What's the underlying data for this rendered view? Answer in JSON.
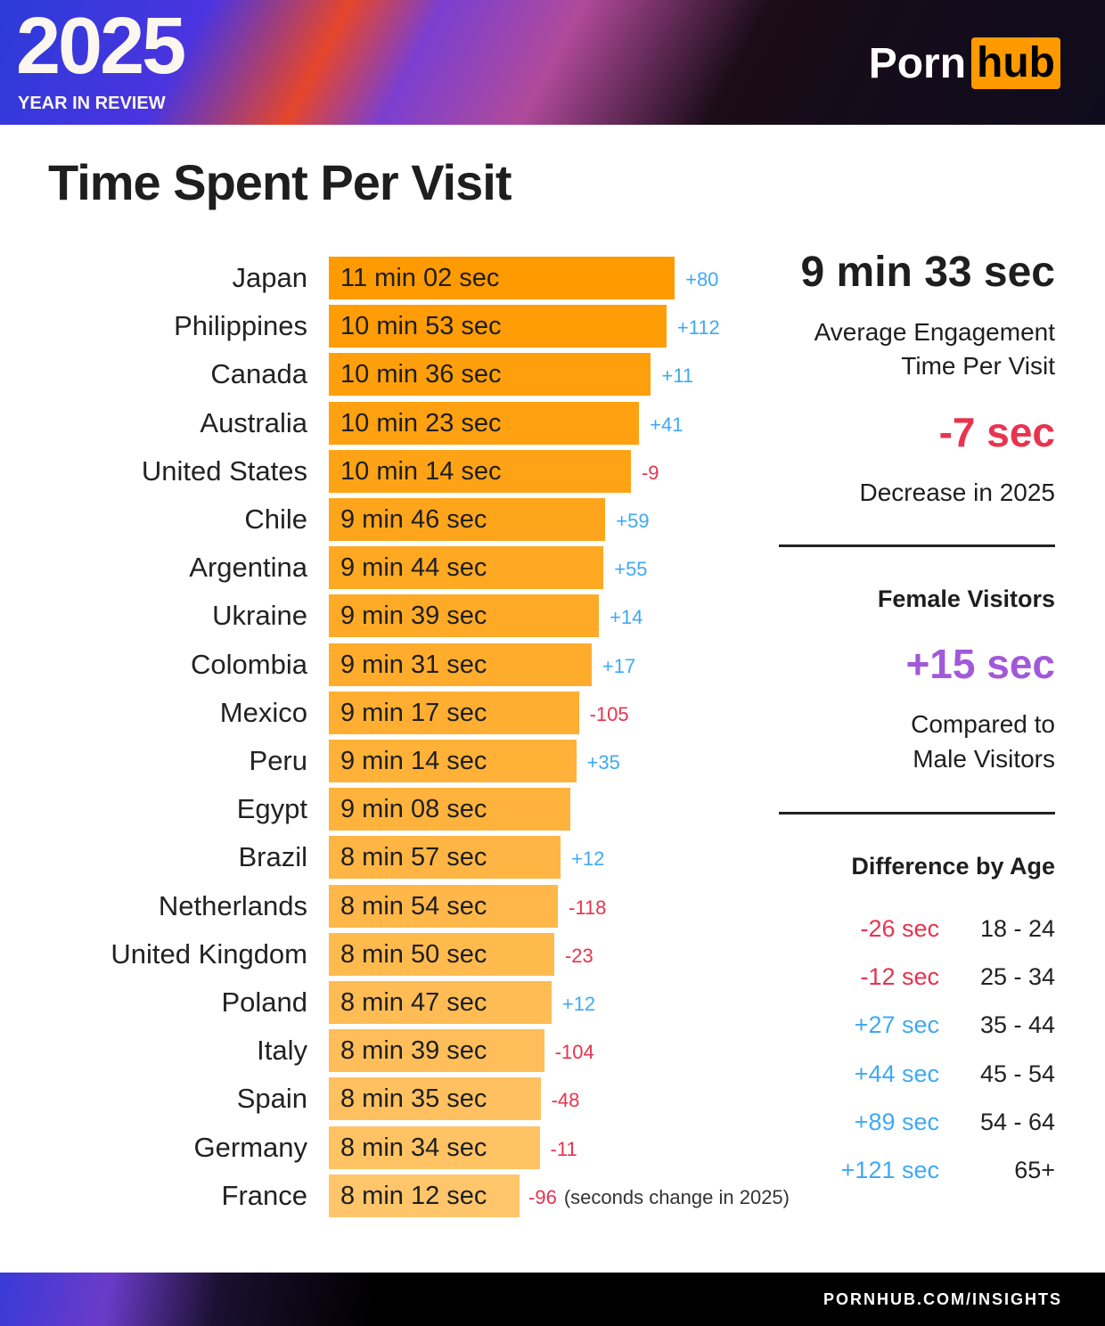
{
  "header": {
    "year": "2025",
    "subtitle": "YEAR IN REVIEW",
    "logo_part1": "Porn",
    "logo_part2": "hub"
  },
  "title": "Time Spent Per Visit",
  "colors": {
    "bar_top": "#ff9a00",
    "bar_bottom": "#ffc56a",
    "positive": "#3fa9f5",
    "negative": "#e8334f",
    "female": "#a259d9"
  },
  "chart_data": {
    "type": "bar",
    "orientation": "horizontal",
    "categories": [
      "Japan",
      "Philippines",
      "Canada",
      "Australia",
      "United States",
      "Chile",
      "Argentina",
      "Ukraine",
      "Colombia",
      "Mexico",
      "Peru",
      "Egypt",
      "Brazil",
      "Netherlands",
      "United Kingdom",
      "Poland",
      "Italy",
      "Spain",
      "Germany",
      "France"
    ],
    "values_seconds": [
      662,
      653,
      636,
      623,
      614,
      586,
      584,
      579,
      571,
      557,
      554,
      548,
      537,
      534,
      530,
      527,
      519,
      515,
      514,
      492
    ],
    "labels": [
      "11 min 02 sec",
      "10 min 53 sec",
      "10 min 36 sec",
      "10 min 23 sec",
      "10 min 14 sec",
      "9 min 46 sec",
      "9 min 44 sec",
      "9 min 39 sec",
      "9 min 31 sec",
      "9 min 17 sec",
      "9 min 14 sec",
      "9 min 08 sec",
      "8 min 57 sec",
      "8 min 54 sec",
      "8 min 50 sec",
      "8 min 47 sec",
      "8 min 39 sec",
      "8 min 35 sec",
      "8 min 34 sec",
      "8 min 12 sec"
    ],
    "change_labels": [
      "+80",
      "+112",
      "+11",
      "+41",
      "-9",
      "+59",
      "+55",
      "+14",
      "+17",
      "-105",
      "+35",
      "",
      "+12",
      "-118",
      "-23",
      "+12",
      "-104",
      "-48",
      "-11",
      "-96"
    ],
    "change_note": "(seconds change in 2025)"
  },
  "summary": {
    "avg_value": "9 min 33 sec",
    "avg_label_1": "Average Engagement",
    "avg_label_2": "Time Per Visit",
    "change_value": "-7 sec",
    "change_label": "Decrease in 2025",
    "female_heading": "Female Visitors",
    "female_value": "+15 sec",
    "female_label_1": "Compared to",
    "female_label_2": "Male Visitors",
    "age_heading": "Difference by Age",
    "age_rows": [
      {
        "diff": "-26 sec",
        "age": "18 - 24"
      },
      {
        "diff": "-12 sec",
        "age": "25 - 34"
      },
      {
        "diff": "+27 sec",
        "age": "35 - 44"
      },
      {
        "diff": "+44 sec",
        "age": "45 - 54"
      },
      {
        "diff": "+89 sec",
        "age": "54 - 64"
      },
      {
        "diff": "+121 sec",
        "age": "65+"
      }
    ]
  },
  "footer": {
    "url": "PORNHUB.COM/INSIGHTS"
  }
}
